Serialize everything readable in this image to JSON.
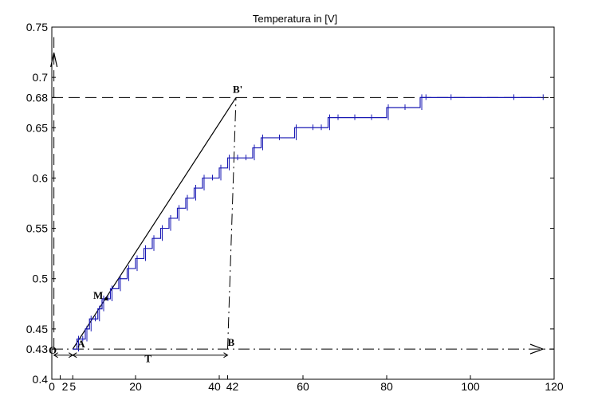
{
  "chart_data": {
    "type": "line",
    "title": "Temperatura in [V]",
    "xlabel": "",
    "ylabel": "",
    "xlim": [
      0,
      120
    ],
    "ylim": [
      0.4,
      0.75
    ],
    "grid": false,
    "x_ticks": [
      {
        "value": 0,
        "label": "0"
      },
      {
        "value": 2,
        "label": "2"
      },
      {
        "value": 5,
        "label": "5"
      },
      {
        "value": 20,
        "label": "20"
      },
      {
        "value": 40,
        "label": "40"
      },
      {
        "value": 42,
        "label": "42"
      },
      {
        "value": 60,
        "label": "60"
      },
      {
        "value": 80,
        "label": "80"
      },
      {
        "value": 100,
        "label": "100"
      },
      {
        "value": 120,
        "label": "120"
      }
    ],
    "y_ticks": [
      {
        "value": 0.4,
        "label": "0.4"
      },
      {
        "value": 0.43,
        "label": "0.43"
      },
      {
        "value": 0.45,
        "label": "0.45"
      },
      {
        "value": 0.5,
        "label": "0.5"
      },
      {
        "value": 0.55,
        "label": "0.55"
      },
      {
        "value": 0.6,
        "label": "0.6"
      },
      {
        "value": 0.65,
        "label": "0.65"
      },
      {
        "value": 0.68,
        "label": "0.68"
      },
      {
        "value": 0.7,
        "label": "0.7"
      },
      {
        "value": 0.75,
        "label": "0.75"
      }
    ],
    "series": [
      {
        "color": "#1a1ab4",
        "style": "step",
        "x": [
          5,
          6,
          7,
          8,
          9,
          10,
          11,
          12,
          13,
          14,
          16,
          18,
          20,
          22,
          24,
          26,
          28,
          30,
          32,
          34,
          36,
          38,
          40,
          42,
          44,
          46,
          48,
          50,
          54,
          58,
          62,
          64,
          66,
          68,
          72,
          76,
          80,
          84,
          88,
          89,
          95,
          110,
          117
        ],
        "y": [
          0.43,
          0.44,
          0.44,
          0.45,
          0.46,
          0.46,
          0.47,
          0.48,
          0.48,
          0.49,
          0.5,
          0.51,
          0.52,
          0.53,
          0.54,
          0.55,
          0.56,
          0.57,
          0.58,
          0.59,
          0.6,
          0.6,
          0.61,
          0.62,
          0.62,
          0.62,
          0.63,
          0.64,
          0.64,
          0.65,
          0.65,
          0.65,
          0.66,
          0.66,
          0.66,
          0.66,
          0.67,
          0.67,
          0.68,
          0.68,
          0.68,
          0.68,
          0.68
        ]
      }
    ],
    "annotations": {
      "tangent": {
        "x": [
          5,
          44
        ],
        "y": [
          0.43,
          0.68
        ],
        "color": "#000000"
      },
      "lines": [
        {
          "kind": "dashed",
          "x": [
            0,
            120
          ],
          "y": [
            0.68,
            0.68
          ]
        },
        {
          "kind": "dashdot",
          "x": [
            0,
            120
          ],
          "y": [
            0.43,
            0.43
          ]
        },
        {
          "kind": "dashdot",
          "x": [
            42,
            44
          ],
          "y": [
            0.43,
            0.68
          ]
        },
        {
          "kind": "dashed",
          "x": [
            0.5,
            0.5
          ],
          "y": [
            0.43,
            0.74
          ]
        }
      ],
      "dimension_arrows": [
        {
          "x": [
            0.5,
            5
          ],
          "y": 0.424
        },
        {
          "x": [
            5,
            42
          ],
          "y": 0.424
        }
      ],
      "points": [
        {
          "label": "B'",
          "x": 44,
          "y": 0.68
        },
        {
          "label": "B",
          "x": 42,
          "y": 0.43
        },
        {
          "label": "A",
          "x": 5,
          "y": 0.43
        },
        {
          "label": "M",
          "x": 13,
          "y": 0.48
        },
        {
          "label": "O",
          "x": 0,
          "y": 0.43
        }
      ],
      "interval_label": {
        "label": "T",
        "x": 23,
        "y": 0.42
      }
    }
  }
}
